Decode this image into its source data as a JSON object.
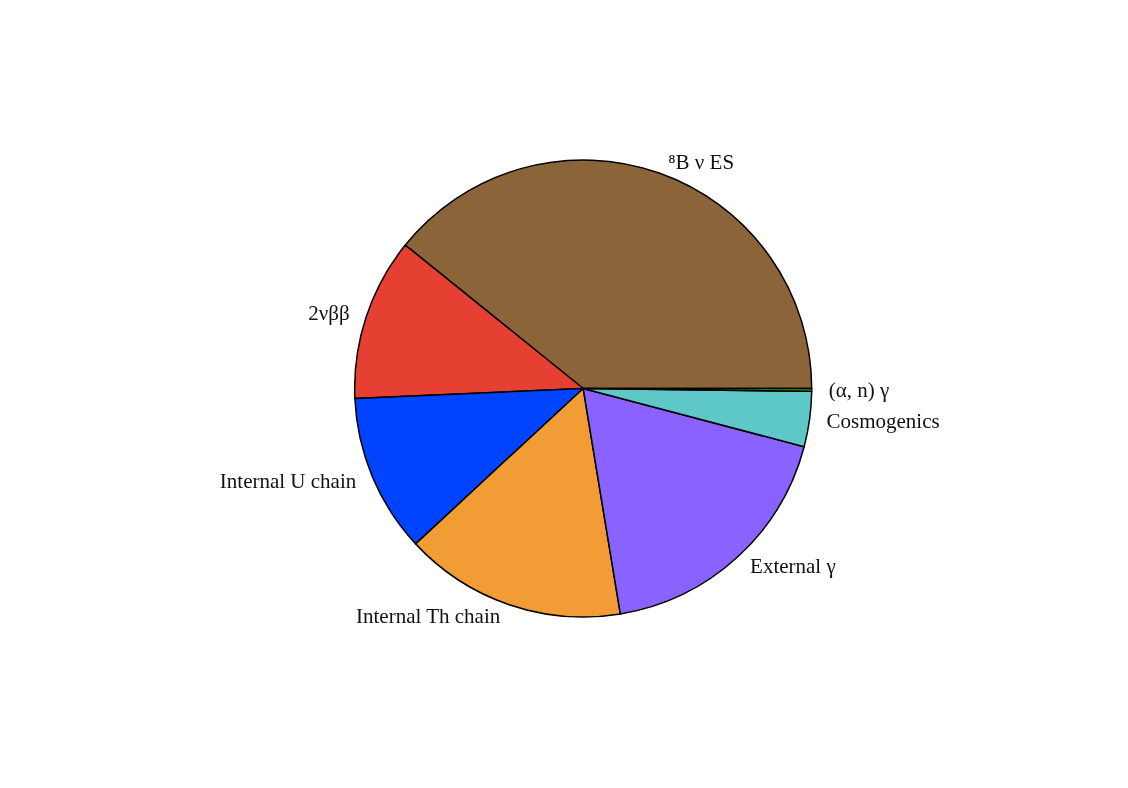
{
  "chart_data": {
    "type": "pie",
    "categories": [
      "⁸B ν ES",
      "2νββ",
      "Internal U chain",
      "Internal Th chain",
      "External γ",
      "Cosmogenics",
      "(α, n) γ"
    ],
    "values": [
      39.2,
      11.5,
      11.2,
      15.7,
      18.3,
      3.9,
      0.2
    ],
    "colors": [
      "#8b6539",
      "#e64032",
      "#0044ff",
      "#f19c35",
      "#8a62ff",
      "#5ec8c8",
      "#3a9a1a"
    ]
  }
}
